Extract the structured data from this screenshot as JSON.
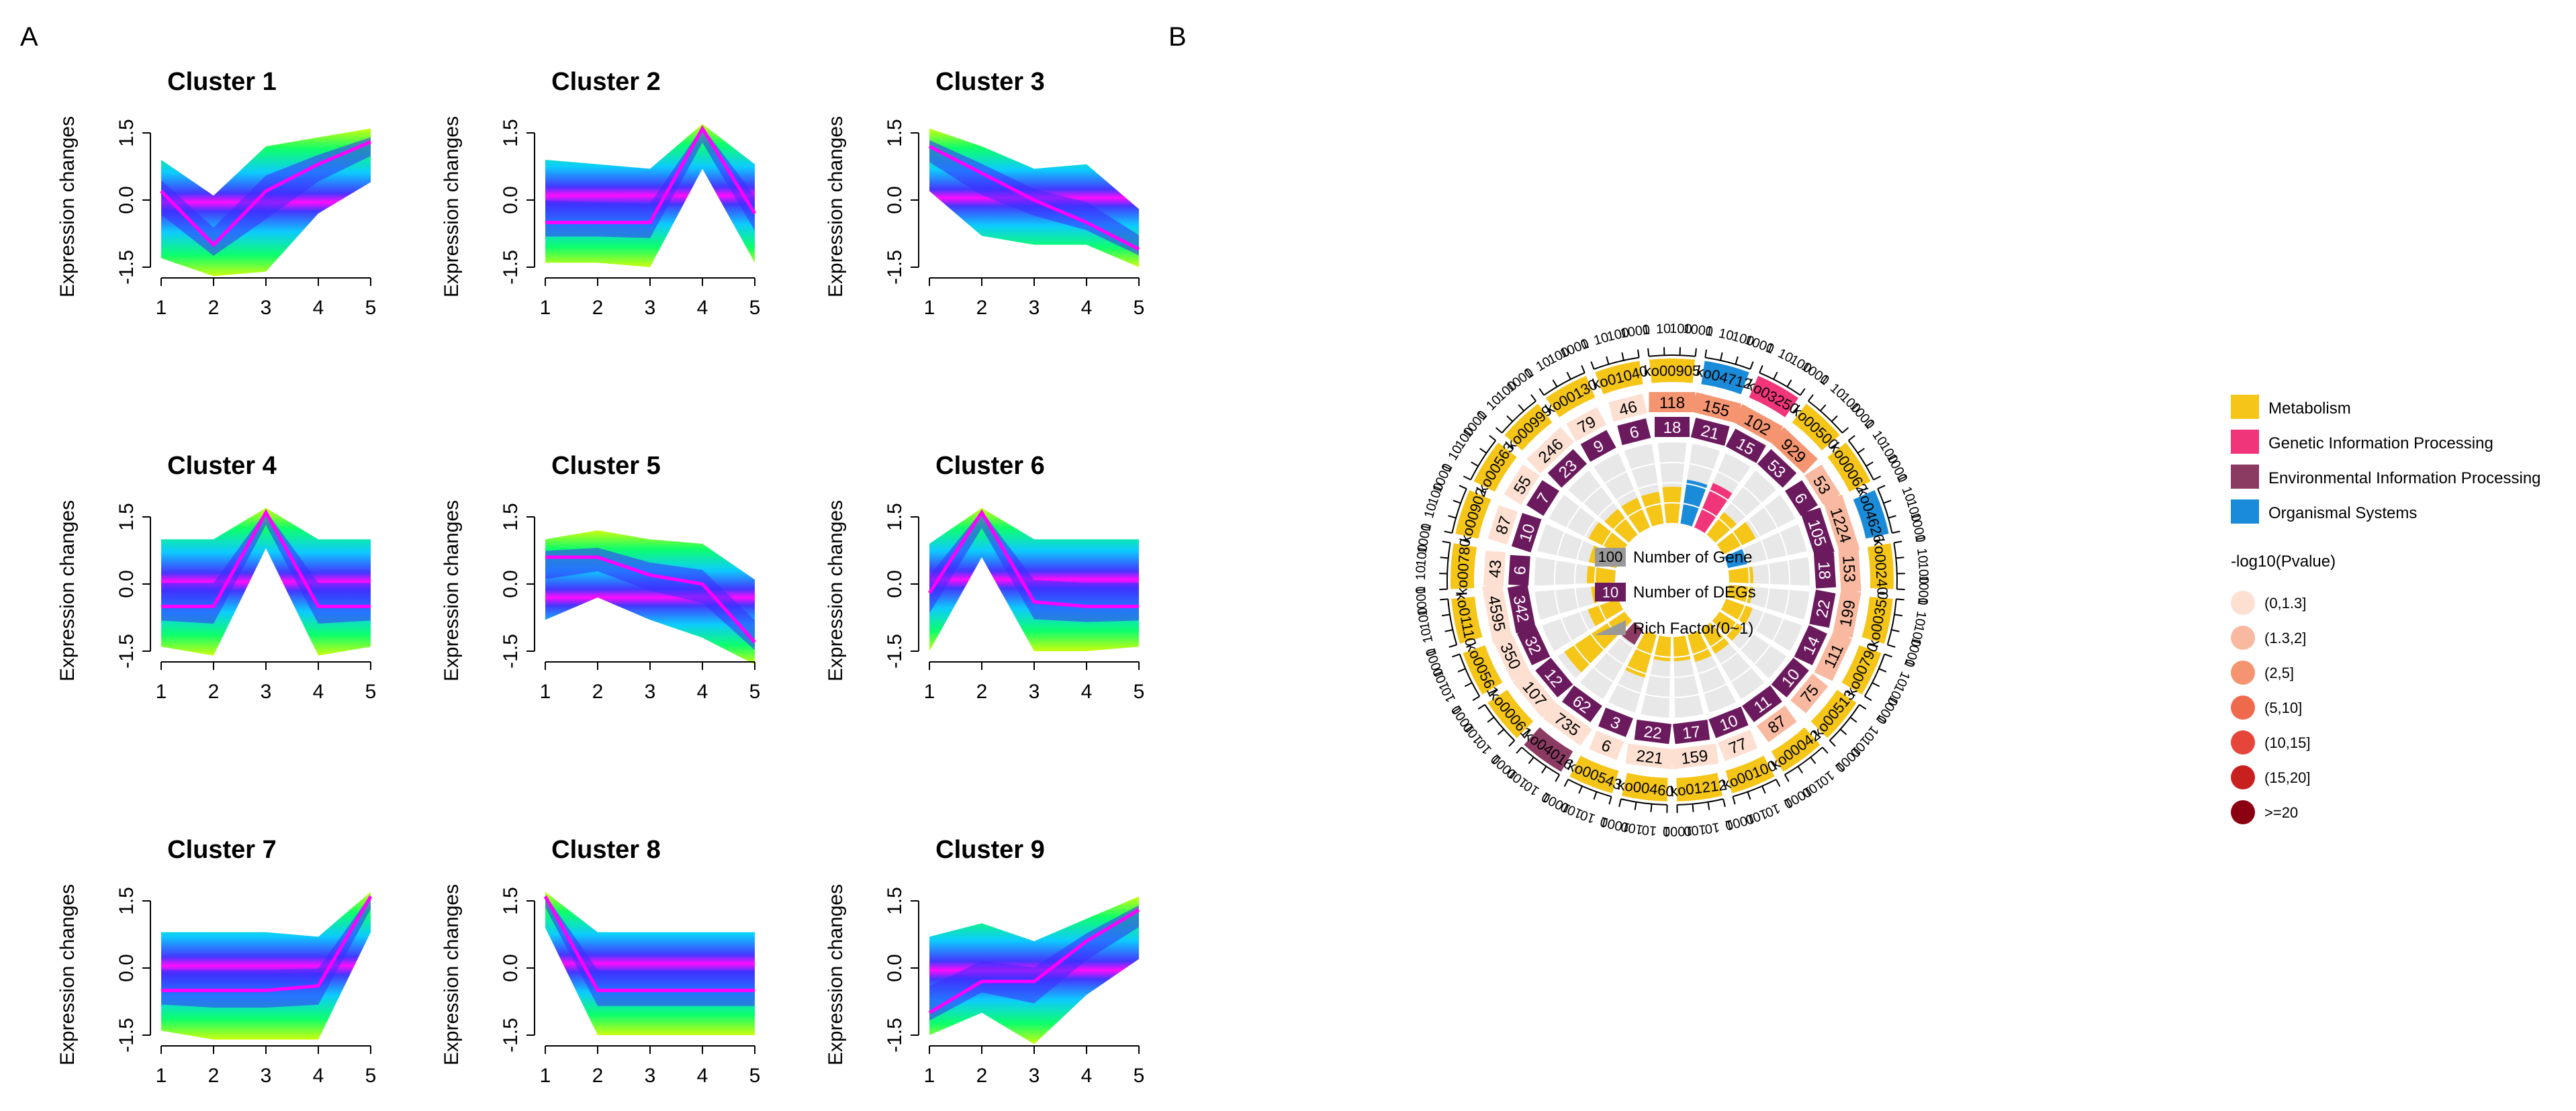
{
  "chart_data": [
    {
      "type": "line",
      "panel_label": "A",
      "xlabel": "",
      "ylabel": "Expression changes",
      "xlim": [
        1,
        5
      ],
      "ylim": [
        -1.5,
        1.5
      ],
      "x_ticks": [
        "1",
        "2",
        "3",
        "4",
        "5"
      ],
      "y_ticks": [
        "-1.5",
        "0.0",
        "1.5"
      ],
      "colors": {
        "core": "#ff00ff",
        "inner": "#3a2dff",
        "mid": "#00c8ff",
        "outer": "#00ff64",
        "edge": "#c8ff00"
      },
      "clusters": [
        {
          "title": "Cluster 1",
          "mean": [
            0.2,
            -1.0,
            0.2,
            0.8,
            1.3
          ],
          "upper": [
            0.9,
            0.1,
            1.2,
            1.4,
            1.6
          ],
          "lower": [
            -1.3,
            -1.7,
            -1.6,
            -0.3,
            0.4
          ]
        },
        {
          "title": "Cluster 2",
          "mean": [
            -0.5,
            -0.5,
            -0.5,
            1.6,
            -0.3
          ],
          "upper": [
            0.9,
            0.8,
            0.7,
            1.7,
            0.8
          ],
          "lower": [
            -1.4,
            -1.4,
            -1.5,
            0.7,
            -1.4
          ]
        },
        {
          "title": "Cluster 3",
          "mean": [
            1.2,
            0.6,
            0.0,
            -0.5,
            -1.1
          ],
          "upper": [
            1.6,
            1.2,
            0.7,
            0.8,
            -0.2
          ],
          "lower": [
            0.2,
            -0.8,
            -1.0,
            -1.0,
            -1.5
          ]
        },
        {
          "title": "Cluster 4",
          "mean": [
            -0.5,
            -0.5,
            1.6,
            -0.5,
            -0.5
          ],
          "upper": [
            1.0,
            1.0,
            1.7,
            1.0,
            1.0
          ],
          "lower": [
            -1.4,
            -1.6,
            0.8,
            -1.6,
            -1.4
          ]
        },
        {
          "title": "Cluster 5",
          "mean": [
            0.6,
            0.6,
            0.2,
            0.0,
            -1.3
          ],
          "upper": [
            1.0,
            1.2,
            1.0,
            0.9,
            0.1
          ],
          "lower": [
            -0.8,
            -0.3,
            -0.8,
            -1.2,
            -1.8
          ]
        },
        {
          "title": "Cluster 6",
          "mean": [
            -0.2,
            1.6,
            -0.4,
            -0.5,
            -0.5
          ],
          "upper": [
            0.9,
            1.7,
            1.0,
            1.0,
            1.0
          ],
          "lower": [
            -1.5,
            0.6,
            -1.5,
            -1.5,
            -1.4
          ]
        },
        {
          "title": "Cluster 7",
          "mean": [
            -0.5,
            -0.5,
            -0.5,
            -0.4,
            1.6
          ],
          "upper": [
            0.8,
            0.8,
            0.8,
            0.7,
            1.7
          ],
          "lower": [
            -1.4,
            -1.6,
            -1.6,
            -1.6,
            0.8
          ]
        },
        {
          "title": "Cluster 8",
          "mean": [
            1.6,
            -0.5,
            -0.5,
            -0.5,
            -0.5
          ],
          "upper": [
            1.7,
            0.8,
            0.8,
            0.8,
            0.8
          ],
          "lower": [
            0.9,
            -1.5,
            -1.5,
            -1.5,
            -1.5
          ]
        },
        {
          "title": "Cluster 9",
          "mean": [
            -1.0,
            -0.3,
            -0.3,
            0.6,
            1.3
          ],
          "upper": [
            0.7,
            1.0,
            0.6,
            1.1,
            1.6
          ],
          "lower": [
            -1.5,
            -1.0,
            -1.7,
            -0.6,
            0.2
          ]
        }
      ]
    },
    {
      "type": "circos",
      "panel_label": "B",
      "axis_tick_labels": [
        "1",
        "10",
        "100",
        "1000"
      ],
      "category_colors": {
        "Metabolism": "#f5c518",
        "Genetic Information Processing": "#f0357a",
        "Environmental Information Processing": "#8b3a62",
        "Organismal Systems": "#1a8bd8"
      },
      "deg_color": "#6b1a5e",
      "pvalue_scale": [
        {
          "label": "(0,1.3]",
          "color": "#fde0d2"
        },
        {
          "label": "(1.3,2]",
          "color": "#f8b9a0"
        },
        {
          "label": "(2,5]",
          "color": "#f49470"
        },
        {
          "label": "(5,10]",
          "color": "#ef6a4c"
        },
        {
          "label": "(10,15]",
          "color": "#e6463a"
        },
        {
          "label": "(15,20]",
          "color": "#c8201f"
        },
        {
          "label": ">=20",
          "color": "#8b0010"
        }
      ],
      "inner_legend": {
        "gene": "Number of Gene",
        "gene_box": "100",
        "deg": "Number of DEGs",
        "deg_box": "10",
        "rich": "Rich Factor(0~1)"
      },
      "legend_title": "-log10(Pvalue)",
      "sectors": [
        {
          "id": "ko00905",
          "category": "Metabolism",
          "genes": 118,
          "degs": 18,
          "pval_bin": 2,
          "rich": 0.45
        },
        {
          "id": "ko04712",
          "category": "Organismal Systems",
          "genes": 155,
          "degs": 21,
          "pval_bin": 2,
          "rich": 0.55
        },
        {
          "id": "ko03250",
          "category": "Genetic Information Processing",
          "genes": 102,
          "degs": 15,
          "pval_bin": 2,
          "rich": 0.6
        },
        {
          "id": "ko00500",
          "category": "Metabolism",
          "genes": 929,
          "degs": 53,
          "pval_bin": 2,
          "rich": 0.35
        },
        {
          "id": "ko00062",
          "category": "Metabolism",
          "genes": 53,
          "degs": 6,
          "pval_bin": 1,
          "rich": 0.45
        },
        {
          "id": "ko04626",
          "category": "Organismal Systems",
          "genes": 1224,
          "degs": 105,
          "pval_bin": 1,
          "rich": 0.25
        },
        {
          "id": "ko00240",
          "category": "Metabolism",
          "genes": 153,
          "degs": 18,
          "pval_bin": 1,
          "rich": 0.3
        },
        {
          "id": "ko00350",
          "category": "Metabolism",
          "genes": 199,
          "degs": 22,
          "pval_bin": 1,
          "rich": 0.3
        },
        {
          "id": "ko00790",
          "category": "Metabolism",
          "genes": 111,
          "degs": 14,
          "pval_bin": 1,
          "rich": 0.35
        },
        {
          "id": "ko00513",
          "category": "Metabolism",
          "genes": 75,
          "degs": 10,
          "pval_bin": 1,
          "rich": 0.35
        },
        {
          "id": "ko00042",
          "category": "Metabolism",
          "genes": 87,
          "degs": 11,
          "pval_bin": 1,
          "rich": 0.35
        },
        {
          "id": "ko00100",
          "category": "Metabolism",
          "genes": 77,
          "degs": 10,
          "pval_bin": 0,
          "rich": 0.35
        },
        {
          "id": "ko01212",
          "category": "Metabolism",
          "genes": 159,
          "degs": 17,
          "pval_bin": 0,
          "rich": 0.3
        },
        {
          "id": "ko00460",
          "category": "Metabolism",
          "genes": 221,
          "degs": 22,
          "pval_bin": 0,
          "rich": 0.3
        },
        {
          "id": "ko00543",
          "category": "Metabolism",
          "genes": 6,
          "degs": 3,
          "pval_bin": 0,
          "rich": 0.55
        },
        {
          "id": "ko04016",
          "category": "Environmental Information Processing",
          "genes": 735,
          "degs": 62,
          "pval_bin": 0,
          "rich": 0.22
        },
        {
          "id": "ko00061",
          "category": "Metabolism",
          "genes": 107,
          "degs": 12,
          "pval_bin": 0,
          "rich": 0.9
        },
        {
          "id": "ko00561",
          "category": "Metabolism",
          "genes": 350,
          "degs": 32,
          "pval_bin": 0,
          "rich": 0.4
        },
        {
          "id": "ko01110",
          "category": "Metabolism",
          "genes": 4595,
          "degs": 342,
          "pval_bin": 0,
          "rich": 0.3
        },
        {
          "id": "ko00780",
          "category": "Metabolism",
          "genes": 43,
          "degs": 6,
          "pval_bin": 0,
          "rich": 0.35
        },
        {
          "id": "ko00902",
          "category": "Metabolism",
          "genes": 87,
          "degs": 10,
          "pval_bin": 0,
          "rich": 0.35
        },
        {
          "id": "ko00563",
          "category": "Metabolism",
          "genes": 55,
          "degs": 7,
          "pval_bin": 0,
          "rich": 0.45
        },
        {
          "id": "ko00999",
          "category": "Metabolism",
          "genes": 246,
          "degs": 23,
          "pval_bin": 0,
          "rich": 0.4
        },
        {
          "id": "ko00130",
          "category": "Metabolism",
          "genes": 79,
          "degs": 9,
          "pval_bin": 0,
          "rich": 0.4
        },
        {
          "id": "ko01040",
          "category": "Metabolism",
          "genes": 46,
          "degs": 6,
          "pval_bin": 0,
          "rich": 0.4
        }
      ]
    }
  ]
}
